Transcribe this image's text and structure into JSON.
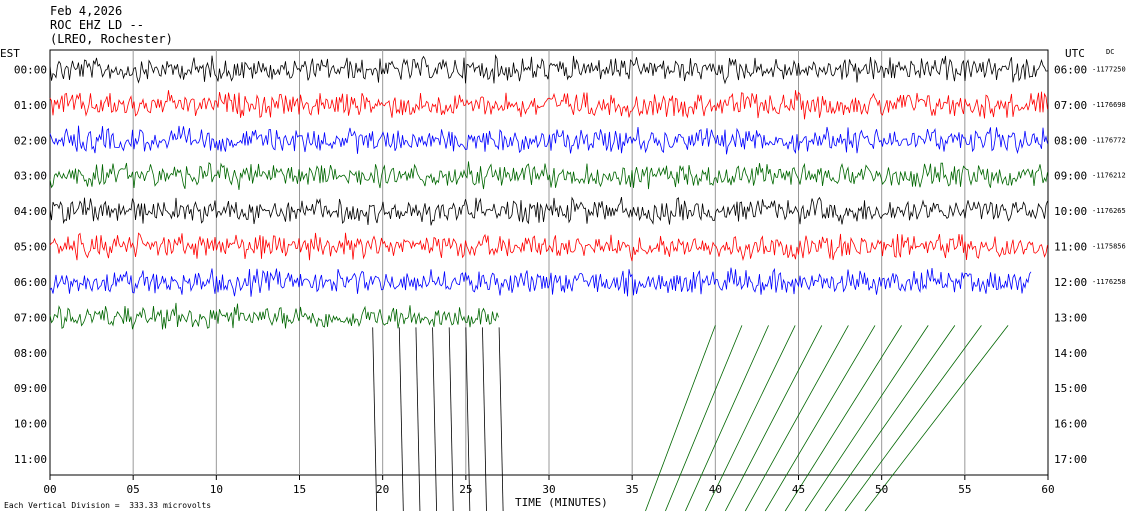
{
  "header": {
    "date": "Feb 4,2026",
    "station": "ROC EHZ LD --",
    "location": "(LREO, Rochester)"
  },
  "left_label": "EST",
  "right_label": "UTC",
  "dc_label": "DC",
  "footer": "Each Vertical Division =  333.33 microvolts",
  "chart_data": {
    "type": "line",
    "subtype": "helicorder",
    "xlabel": "TIME (MINUTES)",
    "x_ticks": [
      "00",
      "05",
      "10",
      "15",
      "20",
      "25",
      "30",
      "35",
      "40",
      "45",
      "50",
      "55",
      "60"
    ],
    "xlim": [
      0,
      60
    ],
    "rows_est": [
      "00:00",
      "01:00",
      "02:00",
      "03:00",
      "04:00",
      "05:00",
      "06:00",
      "07:00",
      "08:00",
      "09:00",
      "10:00",
      "11:00"
    ],
    "rows_utc": [
      "06:00",
      "07:00",
      "08:00",
      "09:00",
      "10:00",
      "11:00",
      "12:00",
      "13:00",
      "14:00",
      "15:00",
      "16:00",
      "17:00"
    ],
    "dc_offsets": [
      "-1177250",
      "-1176698",
      "-1176772",
      "-1176212",
      "-1176265",
      "-1175856",
      "-1176258"
    ],
    "trace_colors": [
      "#000000",
      "#ff0000",
      "#0000ff",
      "#006600"
    ],
    "grid": true,
    "series": [
      {
        "row": "00:00",
        "color": "#000000",
        "end_minute": 60
      },
      {
        "row": "01:00",
        "color": "#ff0000",
        "end_minute": 60
      },
      {
        "row": "02:00",
        "color": "#0000ff",
        "end_minute": 60
      },
      {
        "row": "03:00",
        "color": "#006600",
        "end_minute": 60
      },
      {
        "row": "04:00",
        "color": "#000000",
        "end_minute": 60
      },
      {
        "row": "05:00",
        "color": "#ff0000",
        "end_minute": 60
      },
      {
        "row": "06:00",
        "color": "#0000ff",
        "end_minute": 59
      },
      {
        "row": "07:00",
        "color": "#006600",
        "end_minute": 27
      }
    ]
  }
}
